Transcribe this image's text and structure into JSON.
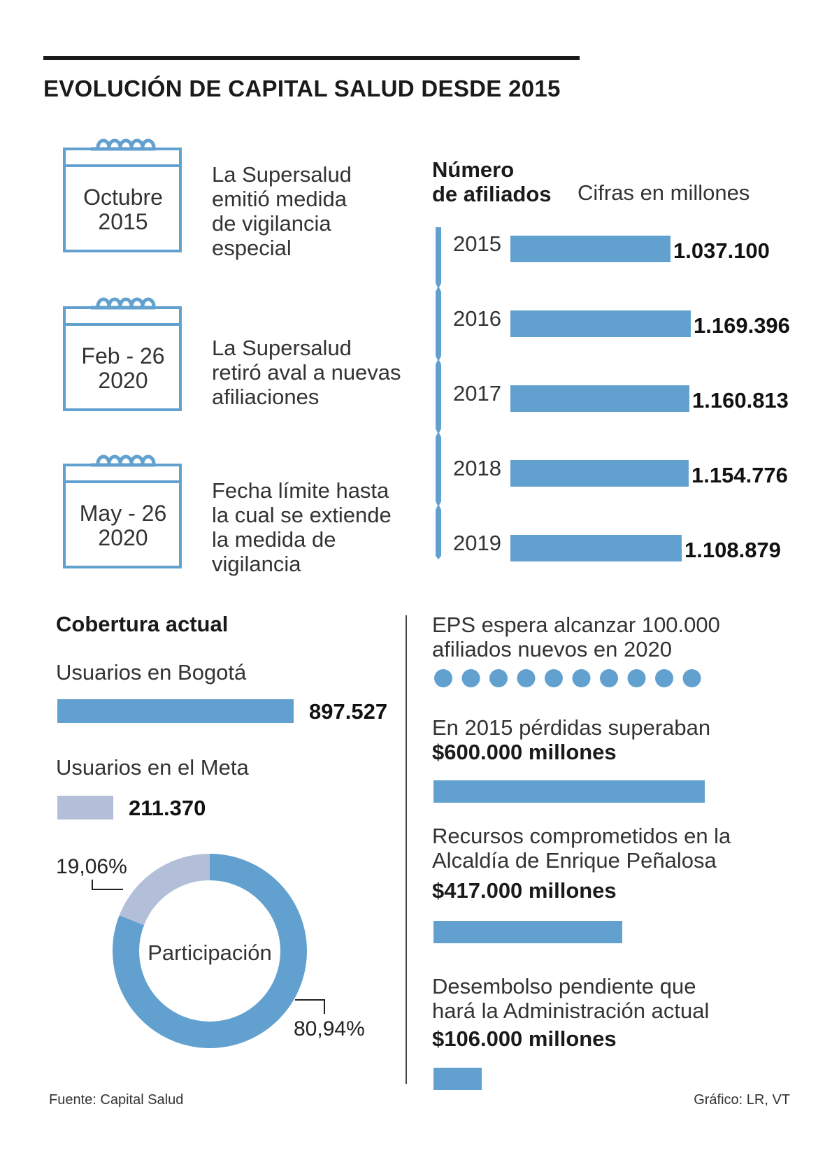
{
  "title": "EVOLUCIÓN DE CAPITAL SALUD DESDE 2015",
  "timeline": [
    {
      "date_line1": "Octubre",
      "date_line2": "2015",
      "text": [
        "La Supersalud",
        "emitió medida",
        "de vigilancia",
        "especial"
      ]
    },
    {
      "date_line1": "Feb - 26",
      "date_line2": "2020",
      "text": [
        "La Supersalud",
        "retiró aval a nuevas",
        "afiliaciones"
      ]
    },
    {
      "date_line1": "May - 26",
      "date_line2": "2020",
      "text": [
        "Fecha límite hasta",
        "la cual se extiende",
        "la medida de",
        "vigilancia"
      ]
    }
  ],
  "colors": {
    "primary": "#62a1cf",
    "secondary": "#b3bfd9",
    "text": "#1a1a1a"
  },
  "chart_data": [
    {
      "type": "bar",
      "orientation": "horizontal",
      "title": "Número de afiliados",
      "title_line1": "Número",
      "title_line2": "de afiliados",
      "subtitle": "Cifras en millones",
      "categories": [
        "2015",
        "2016",
        "2017",
        "2018",
        "2019"
      ],
      "values": [
        1037100,
        1169396,
        1160813,
        1154776,
        1108879
      ],
      "labels": [
        "1.037.100",
        "1.169.396",
        "1.160.813",
        "1.154.776",
        "1.108.879"
      ]
    },
    {
      "type": "bar",
      "orientation": "horizontal",
      "title": "Cobertura actual",
      "categories": [
        "Usuarios en Bogotá",
        "Usuarios en el Meta"
      ],
      "values": [
        897527,
        211370
      ],
      "labels": [
        "897.527",
        "211.370"
      ]
    },
    {
      "type": "pie",
      "subtype": "donut",
      "center_label": "Participación",
      "categories": [
        "Usuarios en Bogotá",
        "Usuarios en el Meta"
      ],
      "values": [
        80.94,
        19.06
      ],
      "labels": [
        "80,94%",
        "19,06%"
      ]
    },
    {
      "type": "bar",
      "orientation": "horizontal",
      "categories": [
        "En 2015 pérdidas superaban",
        "Recursos comprometidos en la Alcaldía de Enrique Peñalosa",
        "Desembolso pendiente que hará la Administración actual"
      ],
      "values": [
        600000,
        417000,
        106000
      ],
      "unit": "millones"
    }
  ],
  "goal": {
    "text_line1": "EPS espera alcanzar 100.000",
    "text_line2": "afiliados nuevos en 2020",
    "dots": 10
  },
  "finance": [
    {
      "text": [
        "En 2015 pérdidas superaban"
      ],
      "amount": "$600.000 millones"
    },
    {
      "text": [
        "Recursos comprometidos en la",
        "Alcaldía de Enrique Peñalosa"
      ],
      "amount": "$417.000 millones"
    },
    {
      "text": [
        "Desembolso pendiente que",
        "hará la Administración actual"
      ],
      "amount": "$106.000 millones"
    }
  ],
  "footer": {
    "source": "Fuente: Capital Salud",
    "credit": "Gráfico: LR, VT"
  }
}
